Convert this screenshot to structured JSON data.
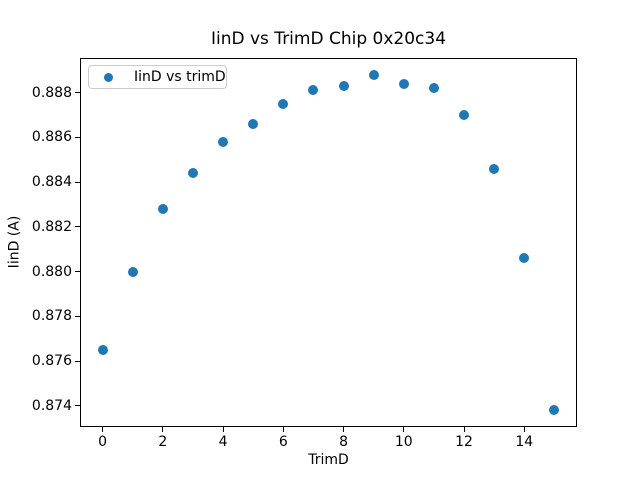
{
  "chart_data": {
    "type": "scatter",
    "title": "IinD vs TrimD Chip 0x20c34",
    "xlabel": "TrimD",
    "ylabel": "IinD (A)",
    "legend_entries": [
      "IinD vs trimD"
    ],
    "legend_position": "upper left",
    "grid": false,
    "x": [
      0,
      1,
      2,
      3,
      4,
      5,
      6,
      7,
      8,
      9,
      10,
      11,
      12,
      13,
      14,
      15
    ],
    "y": [
      0.8765,
      0.88,
      0.8828,
      0.8844,
      0.8858,
      0.8866,
      0.8875,
      0.8881,
      0.8883,
      0.8888,
      0.8884,
      0.8882,
      0.887,
      0.8846,
      0.8806,
      0.8738
    ],
    "xlim": [
      -0.75,
      15.75
    ],
    "ylim": [
      0.87305,
      0.88955
    ],
    "xticks": [
      0,
      2,
      4,
      6,
      8,
      10,
      12,
      14
    ],
    "xtick_labels": [
      "0",
      "2",
      "4",
      "6",
      "8",
      "10",
      "12",
      "14"
    ],
    "yticks": [
      0.874,
      0.876,
      0.878,
      0.88,
      0.882,
      0.884,
      0.886,
      0.888
    ],
    "ytick_labels": [
      "0.874",
      "0.876",
      "0.878",
      "0.880",
      "0.882",
      "0.884",
      "0.886",
      "0.888"
    ],
    "colors": {
      "marker": "#1f77b4",
      "spine": "#000000",
      "text": "#000000",
      "legend_border": "#cccccc",
      "background": "#ffffff"
    }
  }
}
